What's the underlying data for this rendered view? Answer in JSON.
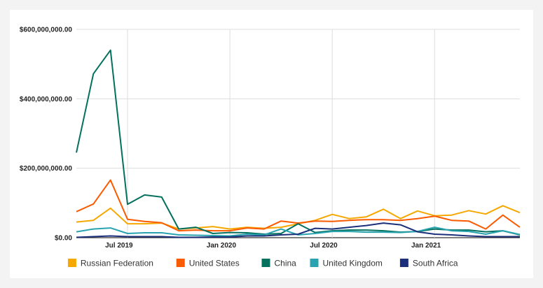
{
  "chart_data": {
    "type": "line",
    "title": "",
    "xlabel": "",
    "ylabel": "",
    "ylim": [
      0,
      600000000
    ],
    "y_ticks": [
      0,
      200000000,
      400000000,
      600000000
    ],
    "y_tick_labels": [
      "$0.00",
      "$200,000,000.00",
      "$400,000,000.00",
      "$600,000,000.00"
    ],
    "x_tick_labels": [
      "Jul 2019",
      "Jan 2020",
      "Jul 2020",
      "Jan 2021"
    ],
    "x_tick_index": [
      2.5,
      8.5,
      14.5,
      20.5
    ],
    "vertical_grid_index": [
      3,
      9,
      15,
      21
    ],
    "grid": true,
    "legend_position": "bottom",
    "categories": [
      "Apr 2019",
      "May 2019",
      "Jun 2019",
      "Jul 2019",
      "Aug 2019",
      "Sep 2019",
      "Oct 2019",
      "Nov 2019",
      "Dec 2019",
      "Jan 2020",
      "Feb 2020",
      "Mar 2020",
      "Apr 2020",
      "May 2020",
      "Jun 2020",
      "Jul 2020",
      "Aug 2020",
      "Sep 2020",
      "Oct 2020",
      "Nov 2020",
      "Dec 2020",
      "Jan 2021",
      "Feb 2021",
      "Mar 2021",
      "Apr 2021",
      "May 2021",
      "Jun 2021"
    ],
    "series": [
      {
        "name": "Russian Federation",
        "color": "#f5a800",
        "values": [
          45000000,
          50000000,
          85000000,
          40000000,
          40000000,
          42000000,
          25000000,
          28000000,
          32000000,
          25000000,
          30000000,
          27000000,
          30000000,
          40000000,
          50000000,
          67000000,
          55000000,
          60000000,
          82000000,
          55000000,
          77000000,
          63000000,
          65000000,
          78000000,
          68000000,
          92000000,
          72000000
        ]
      },
      {
        "name": "United States",
        "color": "#fa5a00",
        "values": [
          75000000,
          97000000,
          166000000,
          53000000,
          47000000,
          43000000,
          20000000,
          22000000,
          20000000,
          20000000,
          28000000,
          25000000,
          48000000,
          42000000,
          48000000,
          47000000,
          50000000,
          52000000,
          52000000,
          50000000,
          55000000,
          62000000,
          50000000,
          48000000,
          25000000,
          65000000,
          30000000
        ]
      },
      {
        "name": "China",
        "color": "#04705e",
        "values": [
          245000000,
          472000000,
          540000000,
          96000000,
          123000000,
          117000000,
          25000000,
          30000000,
          12000000,
          15000000,
          14000000,
          10000000,
          12000000,
          40000000,
          15000000,
          20000000,
          22000000,
          22000000,
          20000000,
          16000000,
          18000000,
          25000000,
          22000000,
          22000000,
          17000000,
          20000000,
          8000000
        ]
      },
      {
        "name": "United Kingdom",
        "color": "#2aa3b0",
        "values": [
          17000000,
          25000000,
          28000000,
          12000000,
          14000000,
          14000000,
          8000000,
          7000000,
          6000000,
          5000000,
          10000000,
          8000000,
          25000000,
          8000000,
          12000000,
          18000000,
          18000000,
          16000000,
          16000000,
          15000000,
          18000000,
          30000000,
          20000000,
          18000000,
          10000000,
          20000000,
          9000000
        ]
      },
      {
        "name": "South Africa",
        "color": "#1b2f7a",
        "values": [
          1000000,
          3000000,
          5000000,
          3000000,
          3000000,
          3000000,
          1000000,
          1000000,
          2000000,
          2000000,
          5000000,
          5000000,
          8000000,
          10000000,
          27000000,
          25000000,
          30000000,
          35000000,
          42000000,
          37000000,
          17000000,
          10000000,
          8000000,
          5000000,
          3000000,
          3000000,
          3000000
        ]
      }
    ]
  }
}
